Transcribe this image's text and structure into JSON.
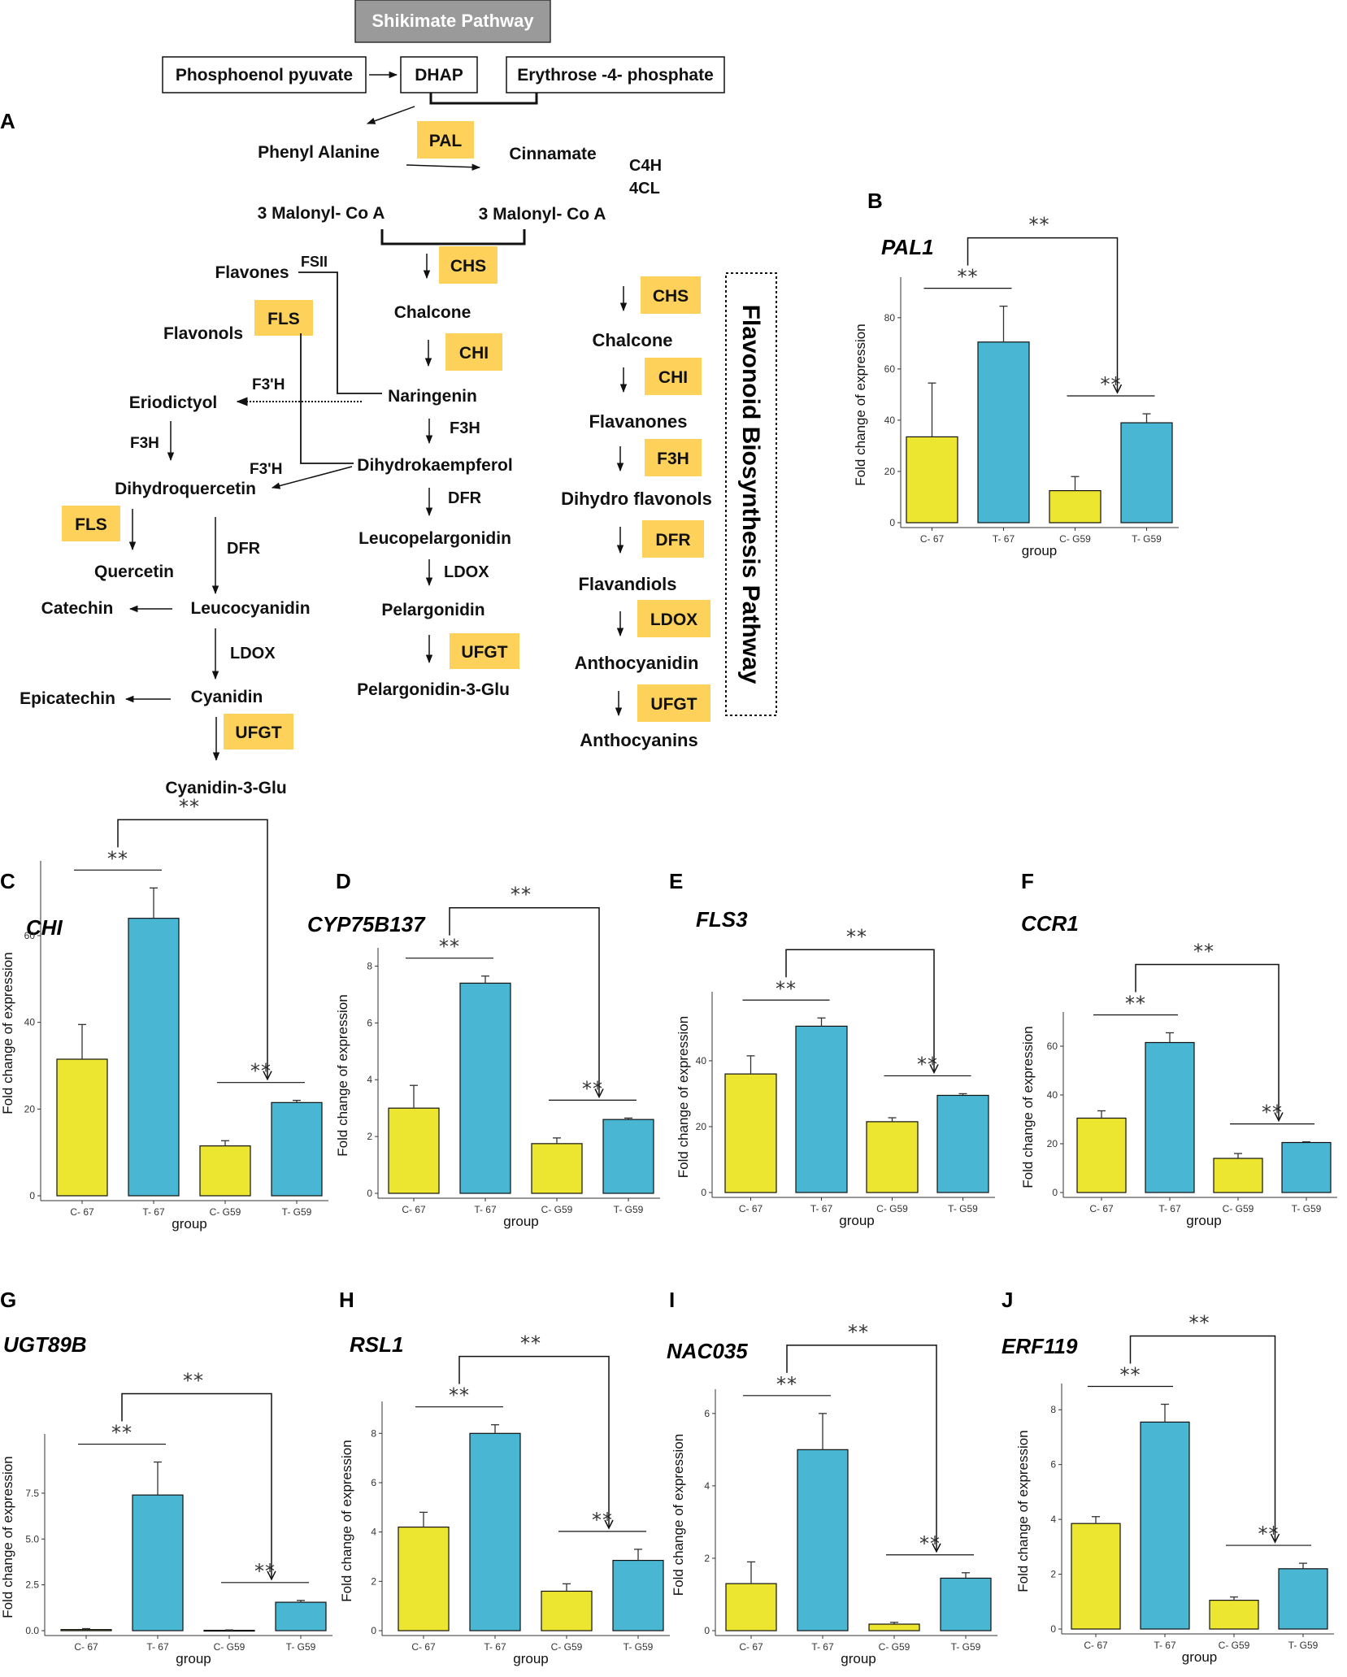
{
  "figure": {
    "panel_a_label": "A",
    "shikimate_title": "Shikimate Pathway",
    "shikimate_nodes": [
      "Phosphoenol pyuvate",
      "DHAP",
      "Erythrose -4- phosphate"
    ],
    "main_path": {
      "phenyl_alanine": "Phenyl Alanine",
      "cinnamate": "Cinnamate",
      "c4h": "C4H",
      "fourcl": "4CL",
      "malonyl_1": "3 Malonyl- Co A",
      "malonyl_2": "3 Malonyl- Co A",
      "flavones": "Flavones",
      "fsii": "FSII",
      "flavonols": "Flavonols",
      "chalcone": "Chalcone",
      "naringenin": "Naringenin",
      "f3h": "F3H",
      "f3ph_1": "F3'H",
      "eriodictyol": "Eriodictyol",
      "f3h_2": "F3H",
      "dihydrokaempferol": "Dihydrokaempferol",
      "f3ph_2": "F3'H",
      "dihydroquercetin": "Dihydroquercetin",
      "dfr_1": "DFR",
      "dfr_2": "DFR",
      "quercetin": "Quercetin",
      "leucopelargonidin": "Leucopelargonidin",
      "ldox_1": "LDOX",
      "catechin": "Catechin",
      "leucocyanidin": "Leucocyanidin",
      "pelargonidin": "Pelargonidin",
      "ldox_2": "LDOX",
      "pelargonidin3glu": "Pelargonidin-3-Glu",
      "epicatechin": "Epicatechin",
      "cyanidin": "Cyanidin",
      "cyanidin3glu": "Cyanidin-3-Glu"
    },
    "enzymes_main": {
      "pal": "PAL",
      "chs": "CHS",
      "fls_1": "FLS",
      "chi": "CHI",
      "fls_2": "FLS",
      "ufgt_1": "UFGT",
      "ufgt_2": "UFGT"
    },
    "side_path": {
      "title": "Flavonoid Biosynthesis Pathway",
      "enzymes": [
        "CHS",
        "CHI",
        "F3H",
        "DFR",
        "LDOX",
        "UFGT"
      ],
      "nodes": [
        "Chalcone",
        "Flavanones",
        "Dihydro flavonols",
        "Flavandiols",
        "Anthocyanidin",
        "Anthocyanins"
      ]
    }
  },
  "colors": {
    "control": "#ede630",
    "treated": "#49b6d3",
    "enzyme_box": "#fdd15a"
  },
  "chart_data": [
    {
      "panel": "B",
      "gene": "PAL1",
      "type": "bar",
      "categories": [
        "C- 67",
        "T- 67",
        "C- G59",
        "T- G59"
      ],
      "values": [
        33.5,
        70.5,
        12.5,
        39
      ],
      "errors": [
        21,
        14,
        5.5,
        3.5
      ],
      "yticks": [
        "0",
        "20",
        "40",
        "60",
        "80"
      ],
      "ylim": [
        0,
        92
      ],
      "xlabel": "group",
      "ylabel": "Fold change of expression",
      "significance": [
        {
          "label": "**",
          "between": [
            "C- 67",
            "T- 67"
          ]
        },
        {
          "label": "**",
          "between": [
            "C- G59",
            "T- G59"
          ]
        },
        {
          "label": "**",
          "between": [
            "T- 67",
            "T- G59"
          ]
        }
      ]
    },
    {
      "panel": "C",
      "gene": "CHI",
      "type": "bar",
      "categories": [
        "C- 67",
        "T- 67",
        "C- G59",
        "T- G59"
      ],
      "values": [
        31.5,
        64,
        11.5,
        21.5
      ],
      "errors": [
        8,
        7,
        1.2,
        0.5
      ],
      "yticks": [
        "0",
        "20",
        "40",
        "60"
      ],
      "ylim": [
        0,
        75
      ],
      "xlabel": "group",
      "ylabel": "Fold change of expression",
      "significance": [
        {
          "label": "**",
          "between": [
            "C- 67",
            "T- 67"
          ]
        },
        {
          "label": "**",
          "between": [
            "C- G59",
            "T- G59"
          ]
        },
        {
          "label": "**",
          "between": [
            "T- 67",
            "T- G59"
          ]
        }
      ]
    },
    {
      "panel": "D",
      "gene": "CYP75B137",
      "type": "bar",
      "categories": [
        "C- 67",
        "T- 67",
        "C- G59",
        "T- G59"
      ],
      "values": [
        3.0,
        7.4,
        1.75,
        2.6
      ],
      "errors": [
        0.8,
        0.25,
        0.2,
        0.05
      ],
      "yticks": [
        "0",
        "2",
        "4",
        "6",
        "8"
      ],
      "ylim": [
        0,
        8.3
      ],
      "xlabel": "group",
      "ylabel": "Fold change of expression",
      "significance": [
        {
          "label": "**",
          "between": [
            "C- 67",
            "T- 67"
          ]
        },
        {
          "label": "**",
          "between": [
            "C- G59",
            "T- G59"
          ]
        },
        {
          "label": "**",
          "between": [
            "T- 67",
            "T- G59"
          ]
        }
      ]
    },
    {
      "panel": "E",
      "gene": "FLS3",
      "type": "bar",
      "categories": [
        "C- 67",
        "T- 67",
        "C- G59",
        "T- G59"
      ],
      "values": [
        36,
        50.5,
        21.5,
        29.5
      ],
      "errors": [
        5.5,
        2.5,
        1.2,
        0.5
      ],
      "yticks": [
        "0",
        "20",
        "40"
      ],
      "ylim": [
        0,
        58
      ],
      "xlabel": "group",
      "ylabel": "Fold change of expression",
      "significance": [
        {
          "label": "**",
          "between": [
            "C- 67",
            "T- 67"
          ]
        },
        {
          "label": "**",
          "between": [
            "C- G59",
            "T- G59"
          ]
        },
        {
          "label": "**",
          "between": [
            "T- 67",
            "T- G59"
          ]
        }
      ]
    },
    {
      "panel": "F",
      "gene": "CCR1",
      "type": "bar",
      "categories": [
        "C- 67",
        "T- 67",
        "C- G59",
        "T- G59"
      ],
      "values": [
        30.5,
        61.5,
        14,
        20.5
      ],
      "errors": [
        3,
        4,
        2,
        0.3
      ],
      "yticks": [
        "0",
        "20",
        "40",
        "60"
      ],
      "ylim": [
        0,
        70
      ],
      "xlabel": "group",
      "ylabel": "Fold change of expression",
      "significance": [
        {
          "label": "**",
          "between": [
            "C- 67",
            "T- 67"
          ]
        },
        {
          "label": "**",
          "between": [
            "C- G59",
            "T- G59"
          ]
        },
        {
          "label": "**",
          "between": [
            "T- 67",
            "T- G59"
          ]
        }
      ]
    },
    {
      "panel": "G",
      "gene": "UGT89B",
      "type": "bar",
      "categories": [
        "C- 67",
        "T- 67",
        "C- G59",
        "T- G59"
      ],
      "values": [
        0.06,
        7.4,
        0.02,
        1.55
      ],
      "errors": [
        0.05,
        1.8,
        0.02,
        0.1
      ],
      "yticks": [
        "0.0",
        "2.5",
        "5.0",
        "7.5"
      ],
      "ylim": [
        0,
        10.2
      ],
      "xlabel": "group",
      "ylabel": "Fold change of expression",
      "significance": [
        {
          "label": "**",
          "between": [
            "C- 67",
            "T- 67"
          ]
        },
        {
          "label": "**",
          "between": [
            "C- G59",
            "T- G59"
          ]
        },
        {
          "label": "**",
          "between": [
            "T- 67",
            "T- G59"
          ]
        }
      ]
    },
    {
      "panel": "H",
      "gene": "RSL1",
      "type": "bar",
      "categories": [
        "C- 67",
        "T- 67",
        "C- G59",
        "T- G59"
      ],
      "values": [
        4.2,
        8.0,
        1.6,
        2.85
      ],
      "errors": [
        0.6,
        0.35,
        0.3,
        0.45
      ],
      "yticks": [
        "0",
        "2",
        "4",
        "6",
        "8"
      ],
      "ylim": [
        0,
        8.9
      ],
      "xlabel": "group",
      "ylabel": "Fold change of expression",
      "significance": [
        {
          "label": "**",
          "between": [
            "C- 67",
            "T- 67"
          ]
        },
        {
          "label": "**",
          "between": [
            "C- G59",
            "T- G59"
          ]
        },
        {
          "label": "**",
          "between": [
            "T- 67",
            "T- G59"
          ]
        }
      ]
    },
    {
      "panel": "I",
      "gene": "NAC035",
      "type": "bar",
      "categories": [
        "C- 67",
        "T- 67",
        "C- G59",
        "T- G59"
      ],
      "values": [
        1.3,
        5.0,
        0.18,
        1.45
      ],
      "errors": [
        0.6,
        1.0,
        0.05,
        0.15
      ],
      "yticks": [
        "0",
        "2",
        "4",
        "6"
      ],
      "ylim": [
        0,
        6.4
      ],
      "xlabel": "group",
      "ylabel": "Fold change of expression",
      "significance": [
        {
          "label": "**",
          "between": [
            "C- 67",
            "T- 67"
          ]
        },
        {
          "label": "**",
          "between": [
            "C- G59",
            "T- G59"
          ]
        },
        {
          "label": "**",
          "between": [
            "T- 67",
            "T- G59"
          ]
        }
      ]
    },
    {
      "panel": "J",
      "gene": "ERF119",
      "type": "bar",
      "categories": [
        "C- 67",
        "T- 67",
        "C- G59",
        "T- G59"
      ],
      "values": [
        3.85,
        7.55,
        1.05,
        2.2
      ],
      "errors": [
        0.25,
        0.65,
        0.12,
        0.2
      ],
      "yticks": [
        "0",
        "2",
        "4",
        "6",
        "8"
      ],
      "ylim": [
        0,
        8.6
      ],
      "xlabel": "group",
      "ylabel": "Fold change of expression",
      "significance": [
        {
          "label": "**",
          "between": [
            "C- 67",
            "T- 67"
          ]
        },
        {
          "label": "**",
          "between": [
            "C- G59",
            "T- G59"
          ]
        },
        {
          "label": "**",
          "between": [
            "T- 67",
            "T- G59"
          ]
        }
      ]
    }
  ]
}
